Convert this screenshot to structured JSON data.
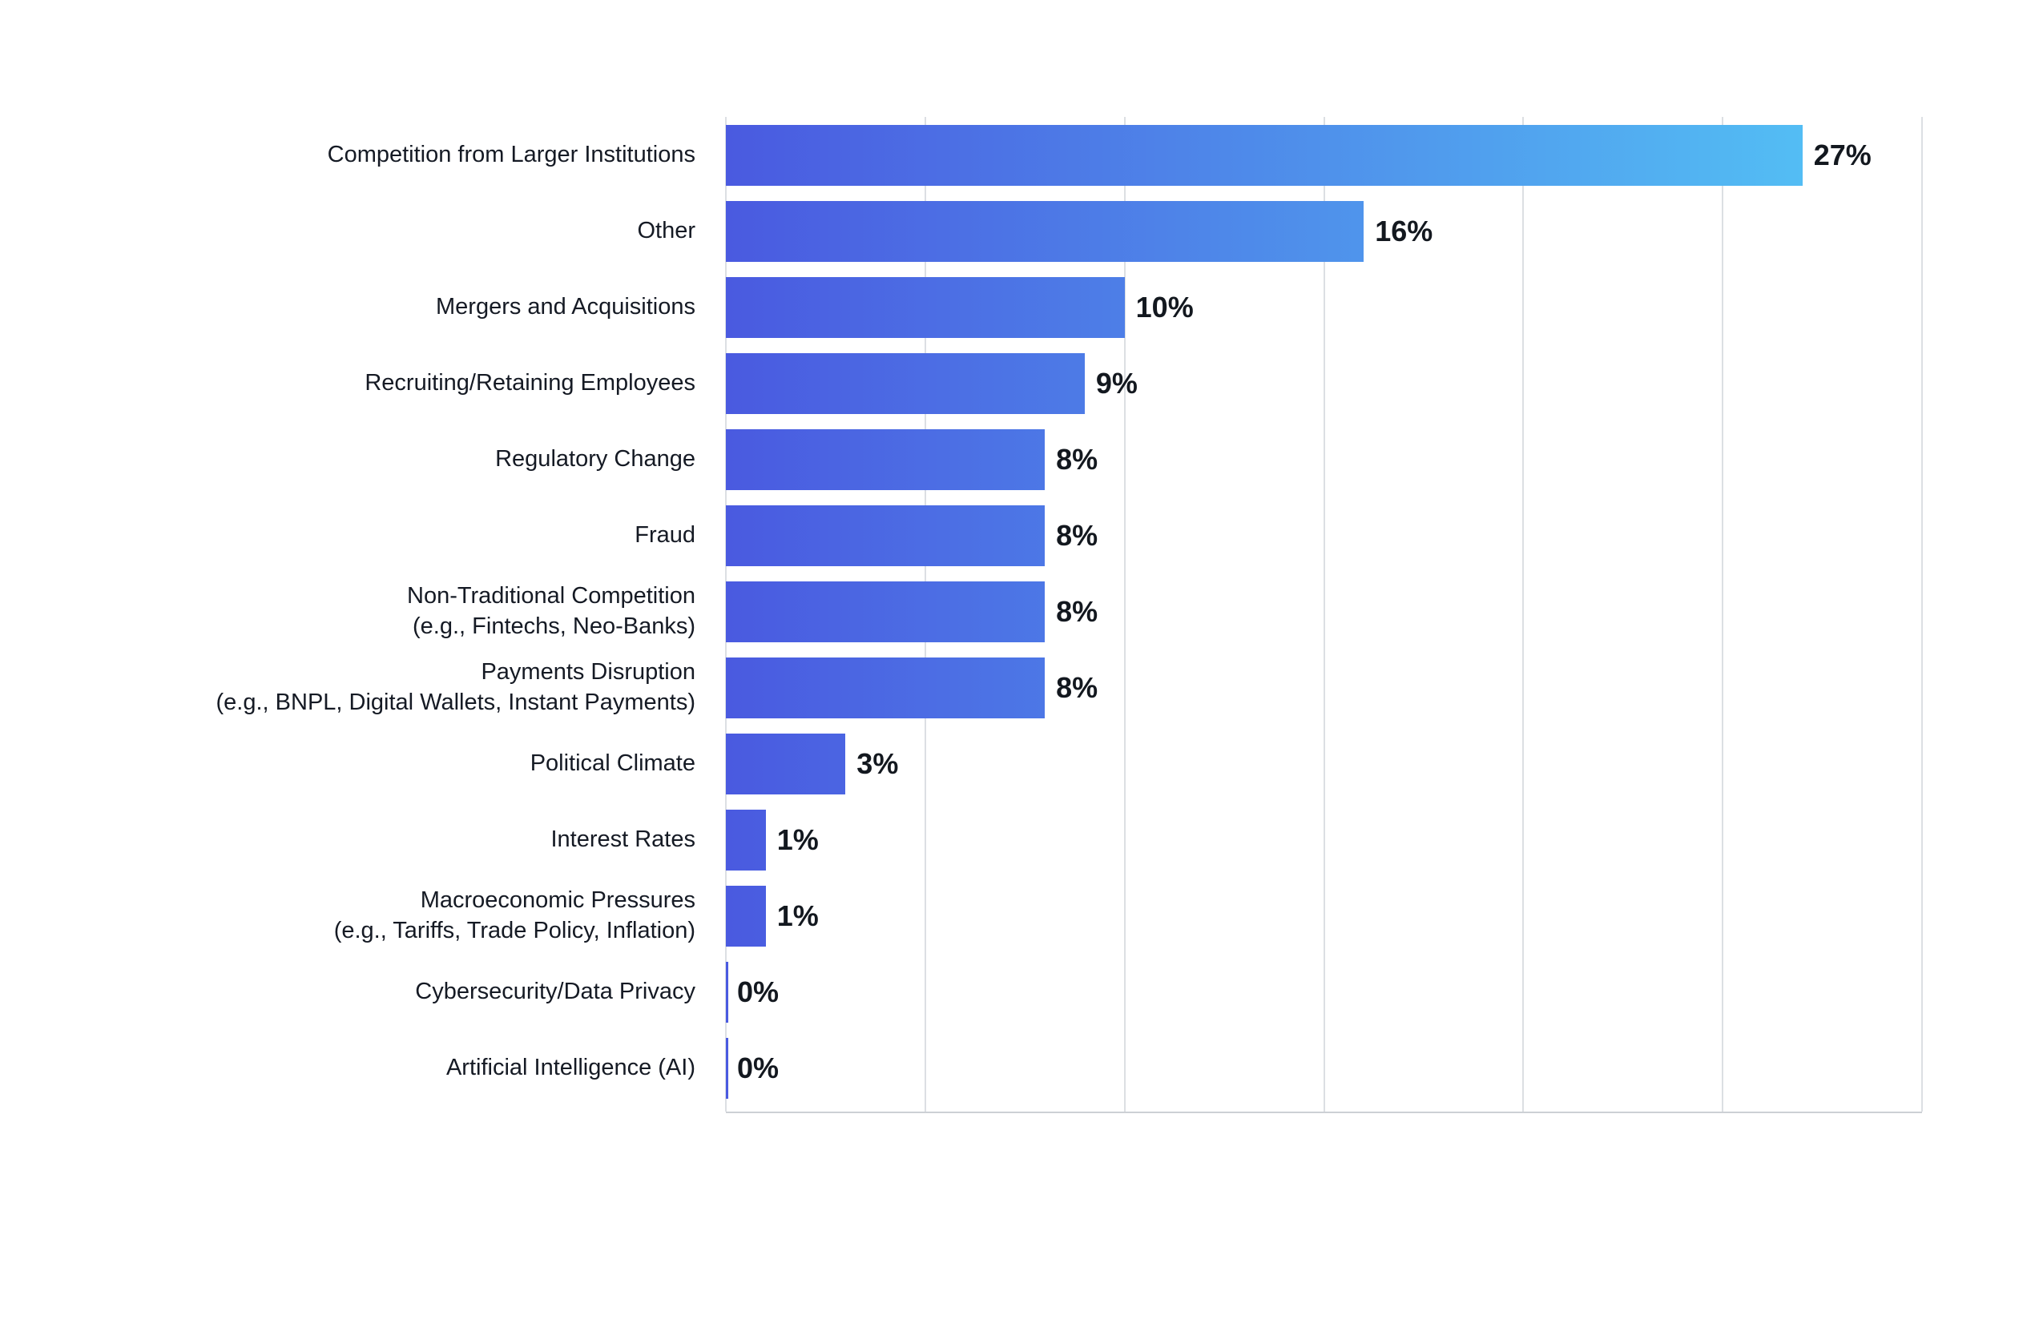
{
  "chart_data": {
    "type": "bar",
    "orientation": "horizontal",
    "title": "",
    "xlabel": "",
    "ylabel": "",
    "xlim": [
      0,
      30
    ],
    "gridline_step": 5,
    "grid": true,
    "categories": [
      "Competition from Larger Institutions",
      "Other",
      "Mergers and Acquisitions",
      "Recruiting/Retaining Employees",
      "Regulatory Change",
      "Fraud",
      "Non-Traditional Competition\n(e.g., Fintechs, Neo-Banks)",
      "Payments Disruption\n(e.g., BNPL, Digital Wallets, Instant Payments)",
      "Political Climate",
      "Interest Rates",
      "Macroeconomic Pressures\n(e.g., Tariffs, Trade Policy, Inflation)",
      "Cybersecurity/Data Privacy",
      "Artificial Intelligence (AI)"
    ],
    "values": [
      27,
      16,
      10,
      9,
      8,
      8,
      8,
      8,
      3,
      1,
      1,
      0,
      0
    ],
    "value_labels": [
      "27%",
      "16%",
      "10%",
      "9%",
      "8%",
      "8%",
      "8%",
      "8%",
      "3%",
      "1%",
      "1%",
      "0%",
      "0%"
    ],
    "colors": {
      "bar_gradient_start": "#4a5ae0",
      "bar_gradient_end": "#54c8f6",
      "gridline": "#dcdfe3",
      "axis_line": "#cdd0d5",
      "label_text": "#151a24",
      "value_text": "#13181f",
      "background": "#ffffff"
    }
  }
}
